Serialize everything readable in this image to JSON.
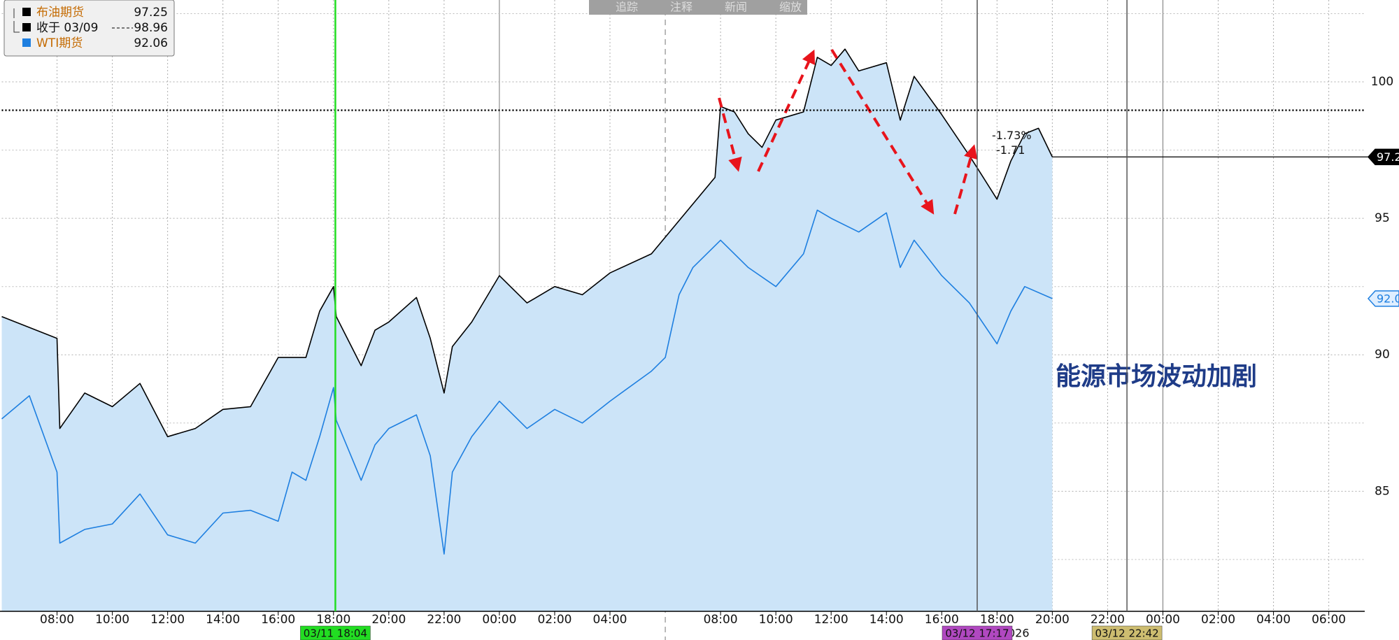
{
  "chart_data": {
    "type": "line",
    "toolbar": [
      "追踪",
      "注释",
      "新闻",
      "缩放"
    ],
    "annotation": "能源市场波动加剧",
    "xlim": [
      6,
      55.3
    ],
    "xticks": [
      {
        "value": 8,
        "label": "08:00"
      },
      {
        "value": 10,
        "label": "10:00"
      },
      {
        "value": 12,
        "label": "12:00"
      },
      {
        "value": 14,
        "label": "14:00"
      },
      {
        "value": 16,
        "label": "16:00"
      },
      {
        "value": 18,
        "label": "18:00"
      },
      {
        "value": 20,
        "label": "20:00"
      },
      {
        "value": 22,
        "label": "22:00"
      },
      {
        "value": 24,
        "label": "00:00"
      },
      {
        "value": 26,
        "label": "02:00"
      },
      {
        "value": 28,
        "label": "04:00"
      },
      {
        "value": 32,
        "label": "08:00"
      },
      {
        "value": 34,
        "label": "10:00"
      },
      {
        "value": 36,
        "label": "12:00"
      },
      {
        "value": 38,
        "label": "14:00"
      },
      {
        "value": 40,
        "label": "16:00"
      },
      {
        "value": 42,
        "label": "18:00"
      },
      {
        "value": 44,
        "label": "20:00"
      },
      {
        "value": 46,
        "label": "22:00"
      },
      {
        "value": 48,
        "label": "00:00"
      },
      {
        "value": 50,
        "label": "02:00"
      },
      {
        "value": 52,
        "label": "04:00"
      },
      {
        "value": 54,
        "label": "06:00"
      }
    ],
    "day_breaks": [
      24,
      48
    ],
    "session_break": 30,
    "ylim": [
      80.6,
      103.0
    ],
    "yticks": [
      85,
      90,
      95,
      100
    ],
    "y_minor_ticks": [
      82.5,
      87.5,
      92.5,
      97.5,
      102.5
    ],
    "grid": true,
    "series": [
      {
        "name": "布油期货",
        "color": "#000000",
        "fill": "#cce4f8",
        "x": [
          6,
          8,
          8.1,
          9,
          10,
          11,
          12,
          13,
          14,
          15,
          16,
          17,
          17.5,
          18,
          18.1,
          19,
          19.5,
          20,
          21,
          21.5,
          22,
          22.3,
          23,
          24,
          25,
          26,
          27,
          28,
          29.5,
          31.8,
          32,
          32.5,
          33,
          33.5,
          34,
          35,
          35.5,
          36,
          36.5,
          37,
          38,
          38.5,
          39,
          40,
          41,
          41.5,
          42,
          42.5,
          43,
          43.5,
          44
        ],
        "values": [
          91.4,
          90.6,
          87.3,
          88.6,
          88.1,
          88.95,
          87.0,
          87.3,
          88.0,
          88.1,
          89.9,
          89.9,
          91.6,
          92.5,
          91.4,
          89.6,
          90.9,
          91.2,
          92.1,
          90.6,
          88.6,
          90.3,
          91.2,
          92.9,
          91.9,
          92.5,
          92.2,
          93.0,
          93.7,
          96.5,
          99.1,
          98.9,
          98.1,
          97.6,
          98.6,
          98.9,
          100.9,
          100.6,
          101.2,
          100.4,
          100.7,
          98.6,
          100.2,
          98.8,
          97.3,
          96.5,
          95.7,
          97.1,
          98.1,
          98.3,
          97.25
        ]
      },
      {
        "name": "WTI期货",
        "color": "#1e7fe0",
        "x": [
          6,
          7,
          8,
          8.1,
          9,
          10,
          11,
          12,
          13,
          14,
          15,
          16,
          16.5,
          17,
          17.5,
          18,
          18.1,
          19,
          19.5,
          20,
          21,
          21.5,
          22,
          22.3,
          23,
          24,
          25,
          26,
          27,
          28,
          29.5,
          30,
          30.5,
          31,
          32,
          33,
          34,
          35,
          35.5,
          36,
          37,
          38,
          38.5,
          39,
          40,
          41,
          42,
          42.5,
          43,
          44
        ],
        "values": [
          87.65,
          88.5,
          85.7,
          83.1,
          83.6,
          83.8,
          84.9,
          83.4,
          83.1,
          84.2,
          84.3,
          83.9,
          85.7,
          85.4,
          87.0,
          88.8,
          87.6,
          85.4,
          86.7,
          87.3,
          87.8,
          86.3,
          82.7,
          85.7,
          87.0,
          88.3,
          87.3,
          88.0,
          87.5,
          88.3,
          89.4,
          89.9,
          92.2,
          93.2,
          94.2,
          93.2,
          92.5,
          93.7,
          95.3,
          95.0,
          94.5,
          95.2,
          93.2,
          94.2,
          92.9,
          91.9,
          90.4,
          91.6,
          92.5,
          92.06
        ]
      }
    ],
    "close_label": "收于 03/09",
    "close_value": 98.96,
    "change_labels": [
      {
        "value": -1.73,
        "label": "-1.73%"
      },
      -1.71
    ],
    "markers": [
      {
        "x": 18.067,
        "label": "03/11 18:04",
        "color": "#22dd22"
      },
      {
        "x": 41.283,
        "label": "03/12 17:17",
        "color": "#b048c0"
      },
      {
        "x": 46.7,
        "label": "03/12 22:42",
        "color": "#cdbd70"
      }
    ],
    "x_axis_fragment": "026"
  }
}
